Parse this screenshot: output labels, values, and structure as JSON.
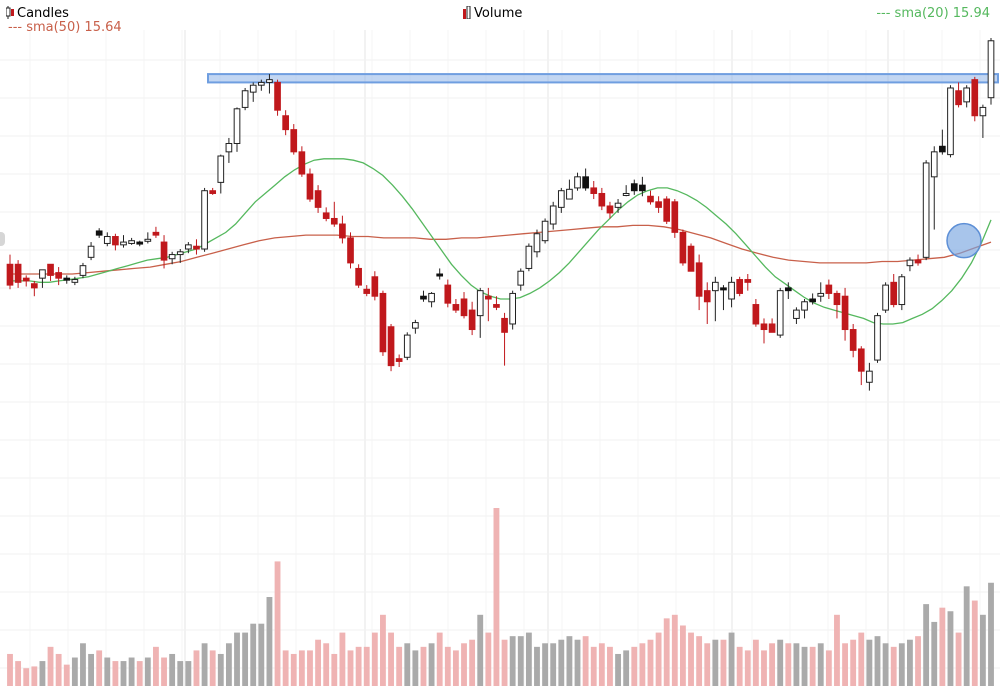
{
  "legend": {
    "candles_label": "Candles",
    "volume_label": "Volume",
    "sma50_text": "--- sma(50) 15.64",
    "sma20_text": "--- sma(20) 15.94"
  },
  "colors": {
    "up": "#ffffff",
    "up_border": "#222222",
    "down": "#c0181c",
    "down_black": "#111111",
    "sma50": "#c8604a",
    "sma20": "#55b85e",
    "grid": "#e6e6e6",
    "volume_up": "#aaaaaa",
    "volume_down": "#efb3b3",
    "highlight": "#8fb4e8",
    "marker": "#7aa6e0"
  },
  "chart_data": {
    "type": "candlestick",
    "y_range": [
      13.28,
      16.68
    ],
    "volume_max": 100,
    "candles": [
      {
        "o": 15.05,
        "h": 15.12,
        "l": 14.87,
        "c": 14.9,
        "v": 18,
        "color": "red"
      },
      {
        "o": 15.05,
        "h": 15.08,
        "l": 14.88,
        "c": 14.92,
        "v": 14,
        "color": "red"
      },
      {
        "o": 14.93,
        "h": 14.97,
        "l": 14.89,
        "c": 14.95,
        "v": 10,
        "color": "red"
      },
      {
        "o": 14.91,
        "h": 14.93,
        "l": 14.82,
        "c": 14.88,
        "v": 11,
        "color": "red"
      },
      {
        "o": 14.95,
        "h": 15.0,
        "l": 14.88,
        "c": 15.01,
        "v": 14,
        "color": "white"
      },
      {
        "o": 14.97,
        "h": 15.05,
        "l": 14.93,
        "c": 15.05,
        "v": 22,
        "color": "red"
      },
      {
        "o": 14.95,
        "h": 15.03,
        "l": 14.9,
        "c": 14.99,
        "v": 18,
        "color": "red"
      },
      {
        "o": 14.94,
        "h": 14.97,
        "l": 14.91,
        "c": 14.95,
        "v": 12,
        "color": "black"
      },
      {
        "o": 14.92,
        "h": 14.96,
        "l": 14.9,
        "c": 14.94,
        "v": 16,
        "color": "white"
      },
      {
        "o": 14.97,
        "h": 15.06,
        "l": 14.95,
        "c": 15.04,
        "v": 24,
        "color": "white"
      },
      {
        "o": 15.1,
        "h": 15.21,
        "l": 15.08,
        "c": 15.18,
        "v": 18,
        "color": "white"
      },
      {
        "o": 15.26,
        "h": 15.31,
        "l": 15.24,
        "c": 15.29,
        "v": 20,
        "color": "black"
      },
      {
        "o": 15.25,
        "h": 15.28,
        "l": 15.18,
        "c": 15.2,
        "v": 16,
        "color": "white"
      },
      {
        "o": 15.19,
        "h": 15.27,
        "l": 15.15,
        "c": 15.25,
        "v": 14,
        "color": "red"
      },
      {
        "o": 15.21,
        "h": 15.26,
        "l": 15.17,
        "c": 15.19,
        "v": 14,
        "color": "white"
      },
      {
        "o": 15.22,
        "h": 15.24,
        "l": 15.19,
        "c": 15.2,
        "v": 16,
        "color": "white"
      },
      {
        "o": 15.2,
        "h": 15.22,
        "l": 15.18,
        "c": 15.21,
        "v": 14,
        "color": "black"
      },
      {
        "o": 15.23,
        "h": 15.28,
        "l": 15.2,
        "c": 15.22,
        "v": 16,
        "color": "white"
      },
      {
        "o": 15.28,
        "h": 15.32,
        "l": 15.24,
        "c": 15.26,
        "v": 22,
        "color": "red"
      },
      {
        "o": 15.21,
        "h": 15.26,
        "l": 15.02,
        "c": 15.08,
        "v": 16,
        "color": "red"
      },
      {
        "o": 15.09,
        "h": 15.14,
        "l": 15.05,
        "c": 15.12,
        "v": 18,
        "color": "white"
      },
      {
        "o": 15.12,
        "h": 15.16,
        "l": 15.06,
        "c": 15.14,
        "v": 14,
        "color": "white"
      },
      {
        "o": 15.16,
        "h": 15.21,
        "l": 15.13,
        "c": 15.19,
        "v": 14,
        "color": "white"
      },
      {
        "o": 15.16,
        "h": 15.23,
        "l": 15.12,
        "c": 15.18,
        "v": 20,
        "color": "red"
      },
      {
        "o": 15.16,
        "h": 15.6,
        "l": 15.14,
        "c": 15.58,
        "v": 24,
        "color": "white"
      },
      {
        "o": 15.58,
        "h": 15.6,
        "l": 15.55,
        "c": 15.56,
        "v": 20,
        "color": "red"
      },
      {
        "o": 15.64,
        "h": 15.84,
        "l": 15.56,
        "c": 15.83,
        "v": 18,
        "color": "white"
      },
      {
        "o": 15.86,
        "h": 15.96,
        "l": 15.78,
        "c": 15.92,
        "v": 24,
        "color": "white"
      },
      {
        "o": 15.92,
        "h": 16.18,
        "l": 15.86,
        "c": 16.17,
        "v": 30,
        "color": "white"
      },
      {
        "o": 16.18,
        "h": 16.32,
        "l": 16.16,
        "c": 16.3,
        "v": 30,
        "color": "white"
      },
      {
        "o": 16.29,
        "h": 16.36,
        "l": 16.22,
        "c": 16.34,
        "v": 35,
        "color": "white"
      },
      {
        "o": 16.34,
        "h": 16.38,
        "l": 16.3,
        "c": 16.36,
        "v": 35,
        "color": "white"
      },
      {
        "o": 16.36,
        "h": 16.42,
        "l": 16.28,
        "c": 16.38,
        "v": 50,
        "color": "white"
      },
      {
        "o": 16.36,
        "h": 16.38,
        "l": 16.12,
        "c": 16.16,
        "v": 70,
        "color": "red"
      },
      {
        "o": 16.12,
        "h": 16.16,
        "l": 15.98,
        "c": 16.02,
        "v": 20,
        "color": "red"
      },
      {
        "o": 16.02,
        "h": 16.06,
        "l": 15.84,
        "c": 15.86,
        "v": 18,
        "color": "red"
      },
      {
        "o": 15.86,
        "h": 15.9,
        "l": 15.68,
        "c": 15.7,
        "v": 20,
        "color": "red"
      },
      {
        "o": 15.7,
        "h": 15.74,
        "l": 15.5,
        "c": 15.52,
        "v": 20,
        "color": "red"
      },
      {
        "o": 15.58,
        "h": 15.62,
        "l": 15.42,
        "c": 15.46,
        "v": 26,
        "color": "red"
      },
      {
        "o": 15.42,
        "h": 15.46,
        "l": 15.36,
        "c": 15.38,
        "v": 24,
        "color": "red"
      },
      {
        "o": 15.38,
        "h": 15.5,
        "l": 15.32,
        "c": 15.34,
        "v": 18,
        "color": "red"
      },
      {
        "o": 15.34,
        "h": 15.4,
        "l": 15.2,
        "c": 15.24,
        "v": 30,
        "color": "red"
      },
      {
        "o": 15.24,
        "h": 15.28,
        "l": 15.02,
        "c": 15.06,
        "v": 20,
        "color": "red"
      },
      {
        "o": 15.02,
        "h": 15.05,
        "l": 14.88,
        "c": 14.9,
        "v": 22,
        "color": "red"
      },
      {
        "o": 14.87,
        "h": 14.9,
        "l": 14.82,
        "c": 14.84,
        "v": 22,
        "color": "red"
      },
      {
        "o": 14.96,
        "h": 15.0,
        "l": 14.79,
        "c": 14.82,
        "v": 30,
        "color": "red"
      },
      {
        "o": 14.84,
        "h": 14.86,
        "l": 14.39,
        "c": 14.42,
        "v": 40,
        "color": "red"
      },
      {
        "o": 14.6,
        "h": 14.62,
        "l": 14.28,
        "c": 14.32,
        "v": 30,
        "color": "red"
      },
      {
        "o": 14.35,
        "h": 14.4,
        "l": 14.31,
        "c": 14.37,
        "v": 22,
        "color": "red"
      },
      {
        "o": 14.38,
        "h": 14.56,
        "l": 14.36,
        "c": 14.54,
        "v": 24,
        "color": "white"
      },
      {
        "o": 14.59,
        "h": 14.65,
        "l": 14.55,
        "c": 14.63,
        "v": 20,
        "color": "white"
      },
      {
        "o": 14.8,
        "h": 14.86,
        "l": 14.78,
        "c": 14.82,
        "v": 22,
        "color": "black"
      },
      {
        "o": 14.78,
        "h": 14.85,
        "l": 14.74,
        "c": 14.84,
        "v": 24,
        "color": "white"
      },
      {
        "o": 14.98,
        "h": 15.02,
        "l": 14.94,
        "c": 14.98,
        "v": 30,
        "color": "black"
      },
      {
        "o": 14.9,
        "h": 14.94,
        "l": 14.74,
        "c": 14.77,
        "v": 22,
        "color": "red"
      },
      {
        "o": 14.76,
        "h": 14.8,
        "l": 14.7,
        "c": 14.72,
        "v": 20,
        "color": "red"
      },
      {
        "o": 14.8,
        "h": 14.85,
        "l": 14.66,
        "c": 14.68,
        "v": 24,
        "color": "red"
      },
      {
        "o": 14.72,
        "h": 14.78,
        "l": 14.54,
        "c": 14.58,
        "v": 26,
        "color": "red"
      },
      {
        "o": 14.68,
        "h": 14.88,
        "l": 14.52,
        "c": 14.86,
        "v": 40,
        "color": "white"
      },
      {
        "o": 14.82,
        "h": 14.88,
        "l": 14.64,
        "c": 14.8,
        "v": 30,
        "color": "red"
      },
      {
        "o": 14.76,
        "h": 14.82,
        "l": 14.72,
        "c": 14.74,
        "v": 100,
        "color": "red"
      },
      {
        "o": 14.66,
        "h": 14.7,
        "l": 14.32,
        "c": 14.56,
        "v": 26,
        "color": "red"
      },
      {
        "o": 14.62,
        "h": 14.86,
        "l": 14.58,
        "c": 14.84,
        "v": 28,
        "color": "white"
      },
      {
        "o": 14.9,
        "h": 15.02,
        "l": 14.86,
        "c": 15.0,
        "v": 28,
        "color": "white"
      },
      {
        "o": 15.02,
        "h": 15.2,
        "l": 15.0,
        "c": 15.18,
        "v": 30,
        "color": "white"
      },
      {
        "o": 15.14,
        "h": 15.3,
        "l": 15.1,
        "c": 15.27,
        "v": 22,
        "color": "white"
      },
      {
        "o": 15.22,
        "h": 15.38,
        "l": 15.2,
        "c": 15.36,
        "v": 24,
        "color": "white"
      },
      {
        "o": 15.34,
        "h": 15.5,
        "l": 15.3,
        "c": 15.47,
        "v": 24,
        "color": "white"
      },
      {
        "o": 15.46,
        "h": 15.6,
        "l": 15.42,
        "c": 15.58,
        "v": 26,
        "color": "white"
      },
      {
        "o": 15.59,
        "h": 15.66,
        "l": 15.52,
        "c": 15.52,
        "v": 28,
        "color": "white"
      },
      {
        "o": 15.6,
        "h": 15.71,
        "l": 15.58,
        "c": 15.68,
        "v": 26,
        "color": "white"
      },
      {
        "o": 15.68,
        "h": 15.74,
        "l": 15.58,
        "c": 15.6,
        "v": 28,
        "color": "black"
      },
      {
        "o": 15.6,
        "h": 15.65,
        "l": 15.52,
        "c": 15.56,
        "v": 22,
        "color": "red"
      },
      {
        "o": 15.56,
        "h": 15.6,
        "l": 15.44,
        "c": 15.47,
        "v": 24,
        "color": "red"
      },
      {
        "o": 15.47,
        "h": 15.5,
        "l": 15.38,
        "c": 15.42,
        "v": 22,
        "color": "red"
      },
      {
        "o": 15.46,
        "h": 15.52,
        "l": 15.42,
        "c": 15.49,
        "v": 18,
        "color": "white"
      },
      {
        "o": 15.56,
        "h": 15.62,
        "l": 15.54,
        "c": 15.56,
        "v": 20,
        "color": "white"
      },
      {
        "o": 15.58,
        "h": 15.66,
        "l": 15.55,
        "c": 15.63,
        "v": 22,
        "color": "black"
      },
      {
        "o": 15.62,
        "h": 15.68,
        "l": 15.54,
        "c": 15.58,
        "v": 24,
        "color": "black"
      },
      {
        "o": 15.54,
        "h": 15.58,
        "l": 15.48,
        "c": 15.5,
        "v": 26,
        "color": "red"
      },
      {
        "o": 15.5,
        "h": 15.54,
        "l": 15.42,
        "c": 15.46,
        "v": 30,
        "color": "red"
      },
      {
        "o": 15.52,
        "h": 15.54,
        "l": 15.34,
        "c": 15.36,
        "v": 38,
        "color": "red"
      },
      {
        "o": 15.5,
        "h": 15.52,
        "l": 15.24,
        "c": 15.28,
        "v": 40,
        "color": "red"
      },
      {
        "o": 15.28,
        "h": 15.3,
        "l": 15.04,
        "c": 15.06,
        "v": 34,
        "color": "red"
      },
      {
        "o": 15.18,
        "h": 15.2,
        "l": 15.02,
        "c": 15.0,
        "v": 30,
        "color": "red"
      },
      {
        "o": 15.06,
        "h": 15.12,
        "l": 14.72,
        "c": 14.82,
        "v": 28,
        "color": "red"
      },
      {
        "o": 14.86,
        "h": 14.92,
        "l": 14.62,
        "c": 14.78,
        "v": 24,
        "color": "red"
      },
      {
        "o": 14.92,
        "h": 14.96,
        "l": 14.64,
        "c": 14.86,
        "v": 26,
        "color": "white"
      },
      {
        "o": 14.88,
        "h": 14.9,
        "l": 14.72,
        "c": 14.87,
        "v": 26,
        "color": "black"
      },
      {
        "o": 14.92,
        "h": 14.96,
        "l": 14.74,
        "c": 14.8,
        "v": 30,
        "color": "white"
      },
      {
        "o": 14.94,
        "h": 14.96,
        "l": 14.82,
        "c": 14.84,
        "v": 22,
        "color": "red"
      },
      {
        "o": 14.94,
        "h": 14.98,
        "l": 14.86,
        "c": 14.92,
        "v": 20,
        "color": "red"
      },
      {
        "o": 14.76,
        "h": 14.8,
        "l": 14.6,
        "c": 14.62,
        "v": 26,
        "color": "red"
      },
      {
        "o": 14.62,
        "h": 14.66,
        "l": 14.48,
        "c": 14.58,
        "v": 20,
        "color": "red"
      },
      {
        "o": 14.62,
        "h": 14.66,
        "l": 14.56,
        "c": 14.56,
        "v": 24,
        "color": "red"
      },
      {
        "o": 14.54,
        "h": 14.88,
        "l": 14.52,
        "c": 14.86,
        "v": 26,
        "color": "white"
      },
      {
        "o": 14.86,
        "h": 14.92,
        "l": 14.8,
        "c": 14.88,
        "v": 24,
        "color": "black"
      },
      {
        "o": 14.66,
        "h": 14.74,
        "l": 14.62,
        "c": 14.72,
        "v": 24,
        "color": "white"
      },
      {
        "o": 14.72,
        "h": 14.8,
        "l": 14.66,
        "c": 14.78,
        "v": 22,
        "color": "white"
      },
      {
        "o": 14.8,
        "h": 14.84,
        "l": 14.76,
        "c": 14.78,
        "v": 22,
        "color": "black"
      },
      {
        "o": 14.84,
        "h": 14.92,
        "l": 14.78,
        "c": 14.82,
        "v": 24,
        "color": "white"
      },
      {
        "o": 14.9,
        "h": 14.94,
        "l": 14.8,
        "c": 14.84,
        "v": 20,
        "color": "red"
      },
      {
        "o": 14.84,
        "h": 14.86,
        "l": 14.66,
        "c": 14.76,
        "v": 40,
        "color": "red"
      },
      {
        "o": 14.82,
        "h": 14.88,
        "l": 14.5,
        "c": 14.58,
        "v": 24,
        "color": "red"
      },
      {
        "o": 14.58,
        "h": 14.62,
        "l": 14.38,
        "c": 14.43,
        "v": 26,
        "color": "red"
      },
      {
        "o": 14.44,
        "h": 14.46,
        "l": 14.18,
        "c": 14.28,
        "v": 30,
        "color": "red"
      },
      {
        "o": 14.28,
        "h": 14.34,
        "l": 14.14,
        "c": 14.2,
        "v": 26,
        "color": "white"
      },
      {
        "o": 14.36,
        "h": 14.7,
        "l": 14.34,
        "c": 14.68,
        "v": 28,
        "color": "white"
      },
      {
        "o": 14.72,
        "h": 14.92,
        "l": 14.7,
        "c": 14.9,
        "v": 24,
        "color": "white"
      },
      {
        "o": 14.92,
        "h": 14.98,
        "l": 14.74,
        "c": 14.76,
        "v": 22,
        "color": "red"
      },
      {
        "o": 14.76,
        "h": 14.98,
        "l": 14.72,
        "c": 14.96,
        "v": 24,
        "color": "white"
      },
      {
        "o": 15.04,
        "h": 15.1,
        "l": 15.0,
        "c": 15.08,
        "v": 26,
        "color": "white"
      },
      {
        "o": 15.08,
        "h": 15.12,
        "l": 15.04,
        "c": 15.06,
        "v": 28,
        "color": "red"
      },
      {
        "o": 15.1,
        "h": 15.8,
        "l": 15.08,
        "c": 15.78,
        "v": 46,
        "color": "white"
      },
      {
        "o": 15.68,
        "h": 15.9,
        "l": 15.3,
        "c": 15.86,
        "v": 36,
        "color": "white"
      },
      {
        "o": 15.86,
        "h": 16.02,
        "l": 15.84,
        "c": 15.9,
        "v": 44,
        "color": "black"
      },
      {
        "o": 15.84,
        "h": 16.34,
        "l": 15.82,
        "c": 16.32,
        "v": 42,
        "color": "white"
      },
      {
        "o": 16.3,
        "h": 16.36,
        "l": 16.18,
        "c": 16.2,
        "v": 30,
        "color": "red"
      },
      {
        "o": 16.22,
        "h": 16.34,
        "l": 16.18,
        "c": 16.32,
        "v": 56,
        "color": "white"
      },
      {
        "o": 16.38,
        "h": 16.4,
        "l": 16.08,
        "c": 16.12,
        "v": 48,
        "color": "red"
      },
      {
        "o": 16.12,
        "h": 16.2,
        "l": 15.96,
        "c": 16.18,
        "v": 40,
        "color": "white"
      },
      {
        "o": 16.25,
        "h": 16.68,
        "l": 16.2,
        "c": 16.66,
        "v": 58,
        "color": "white"
      }
    ],
    "sma20": [
      14.93,
      14.93,
      14.93,
      14.92,
      14.92,
      14.93,
      14.94,
      14.95,
      14.96,
      14.98,
      15.0,
      15.02,
      15.04,
      15.06,
      15.08,
      15.09,
      15.1,
      15.12,
      15.14,
      15.16,
      15.2,
      15.24,
      15.28,
      15.34,
      15.42,
      15.5,
      15.56,
      15.62,
      15.68,
      15.73,
      15.77,
      15.8,
      15.81,
      15.81,
      15.81,
      15.8,
      15.78,
      15.74,
      15.69,
      15.62,
      15.54,
      15.45,
      15.35,
      15.25,
      15.15,
      15.05,
      14.97,
      14.9,
      14.85,
      14.82,
      14.8,
      14.8,
      14.81,
      14.84,
      14.88,
      14.93,
      14.99,
      15.06,
      15.14,
      15.22,
      15.3,
      15.37,
      15.44,
      15.5,
      15.55,
      15.58,
      15.6,
      15.6,
      15.58,
      15.55,
      15.51,
      15.46,
      15.4,
      15.34,
      15.27,
      15.19,
      15.11,
      15.03,
      14.96,
      14.91,
      14.86,
      14.81,
      14.77,
      14.74,
      14.72,
      14.7,
      14.68,
      14.66,
      14.63,
      14.62,
      14.62,
      14.63,
      14.66,
      14.69,
      14.73,
      14.79,
      14.86,
      14.95,
      15.06,
      15.2,
      15.37
    ],
    "sma50": [
      14.98,
      14.98,
      14.98,
      14.98,
      14.98,
      14.99,
      15.0,
      15.01,
      15.02,
      15.03,
      15.05,
      15.07,
      15.1,
      15.13,
      15.16,
      15.19,
      15.22,
      15.24,
      15.25,
      15.26,
      15.26,
      15.26,
      15.25,
      15.25,
      15.24,
      15.24,
      15.24,
      15.23,
      15.23,
      15.24,
      15.24,
      15.25,
      15.26,
      15.27,
      15.28,
      15.29,
      15.3,
      15.31,
      15.32,
      15.32,
      15.33,
      15.33,
      15.32,
      15.3,
      15.27,
      15.24,
      15.2,
      15.16,
      15.13,
      15.1,
      15.08,
      15.07,
      15.06,
      15.06,
      15.06,
      15.06,
      15.07,
      15.07,
      15.08,
      15.09,
      15.1,
      15.13,
      15.17,
      15.21
    ],
    "volume_highlight_index": 61
  },
  "annotations": {
    "resistance_low": 16.36,
    "resistance_high": 16.42,
    "marker_value": 15.22
  }
}
